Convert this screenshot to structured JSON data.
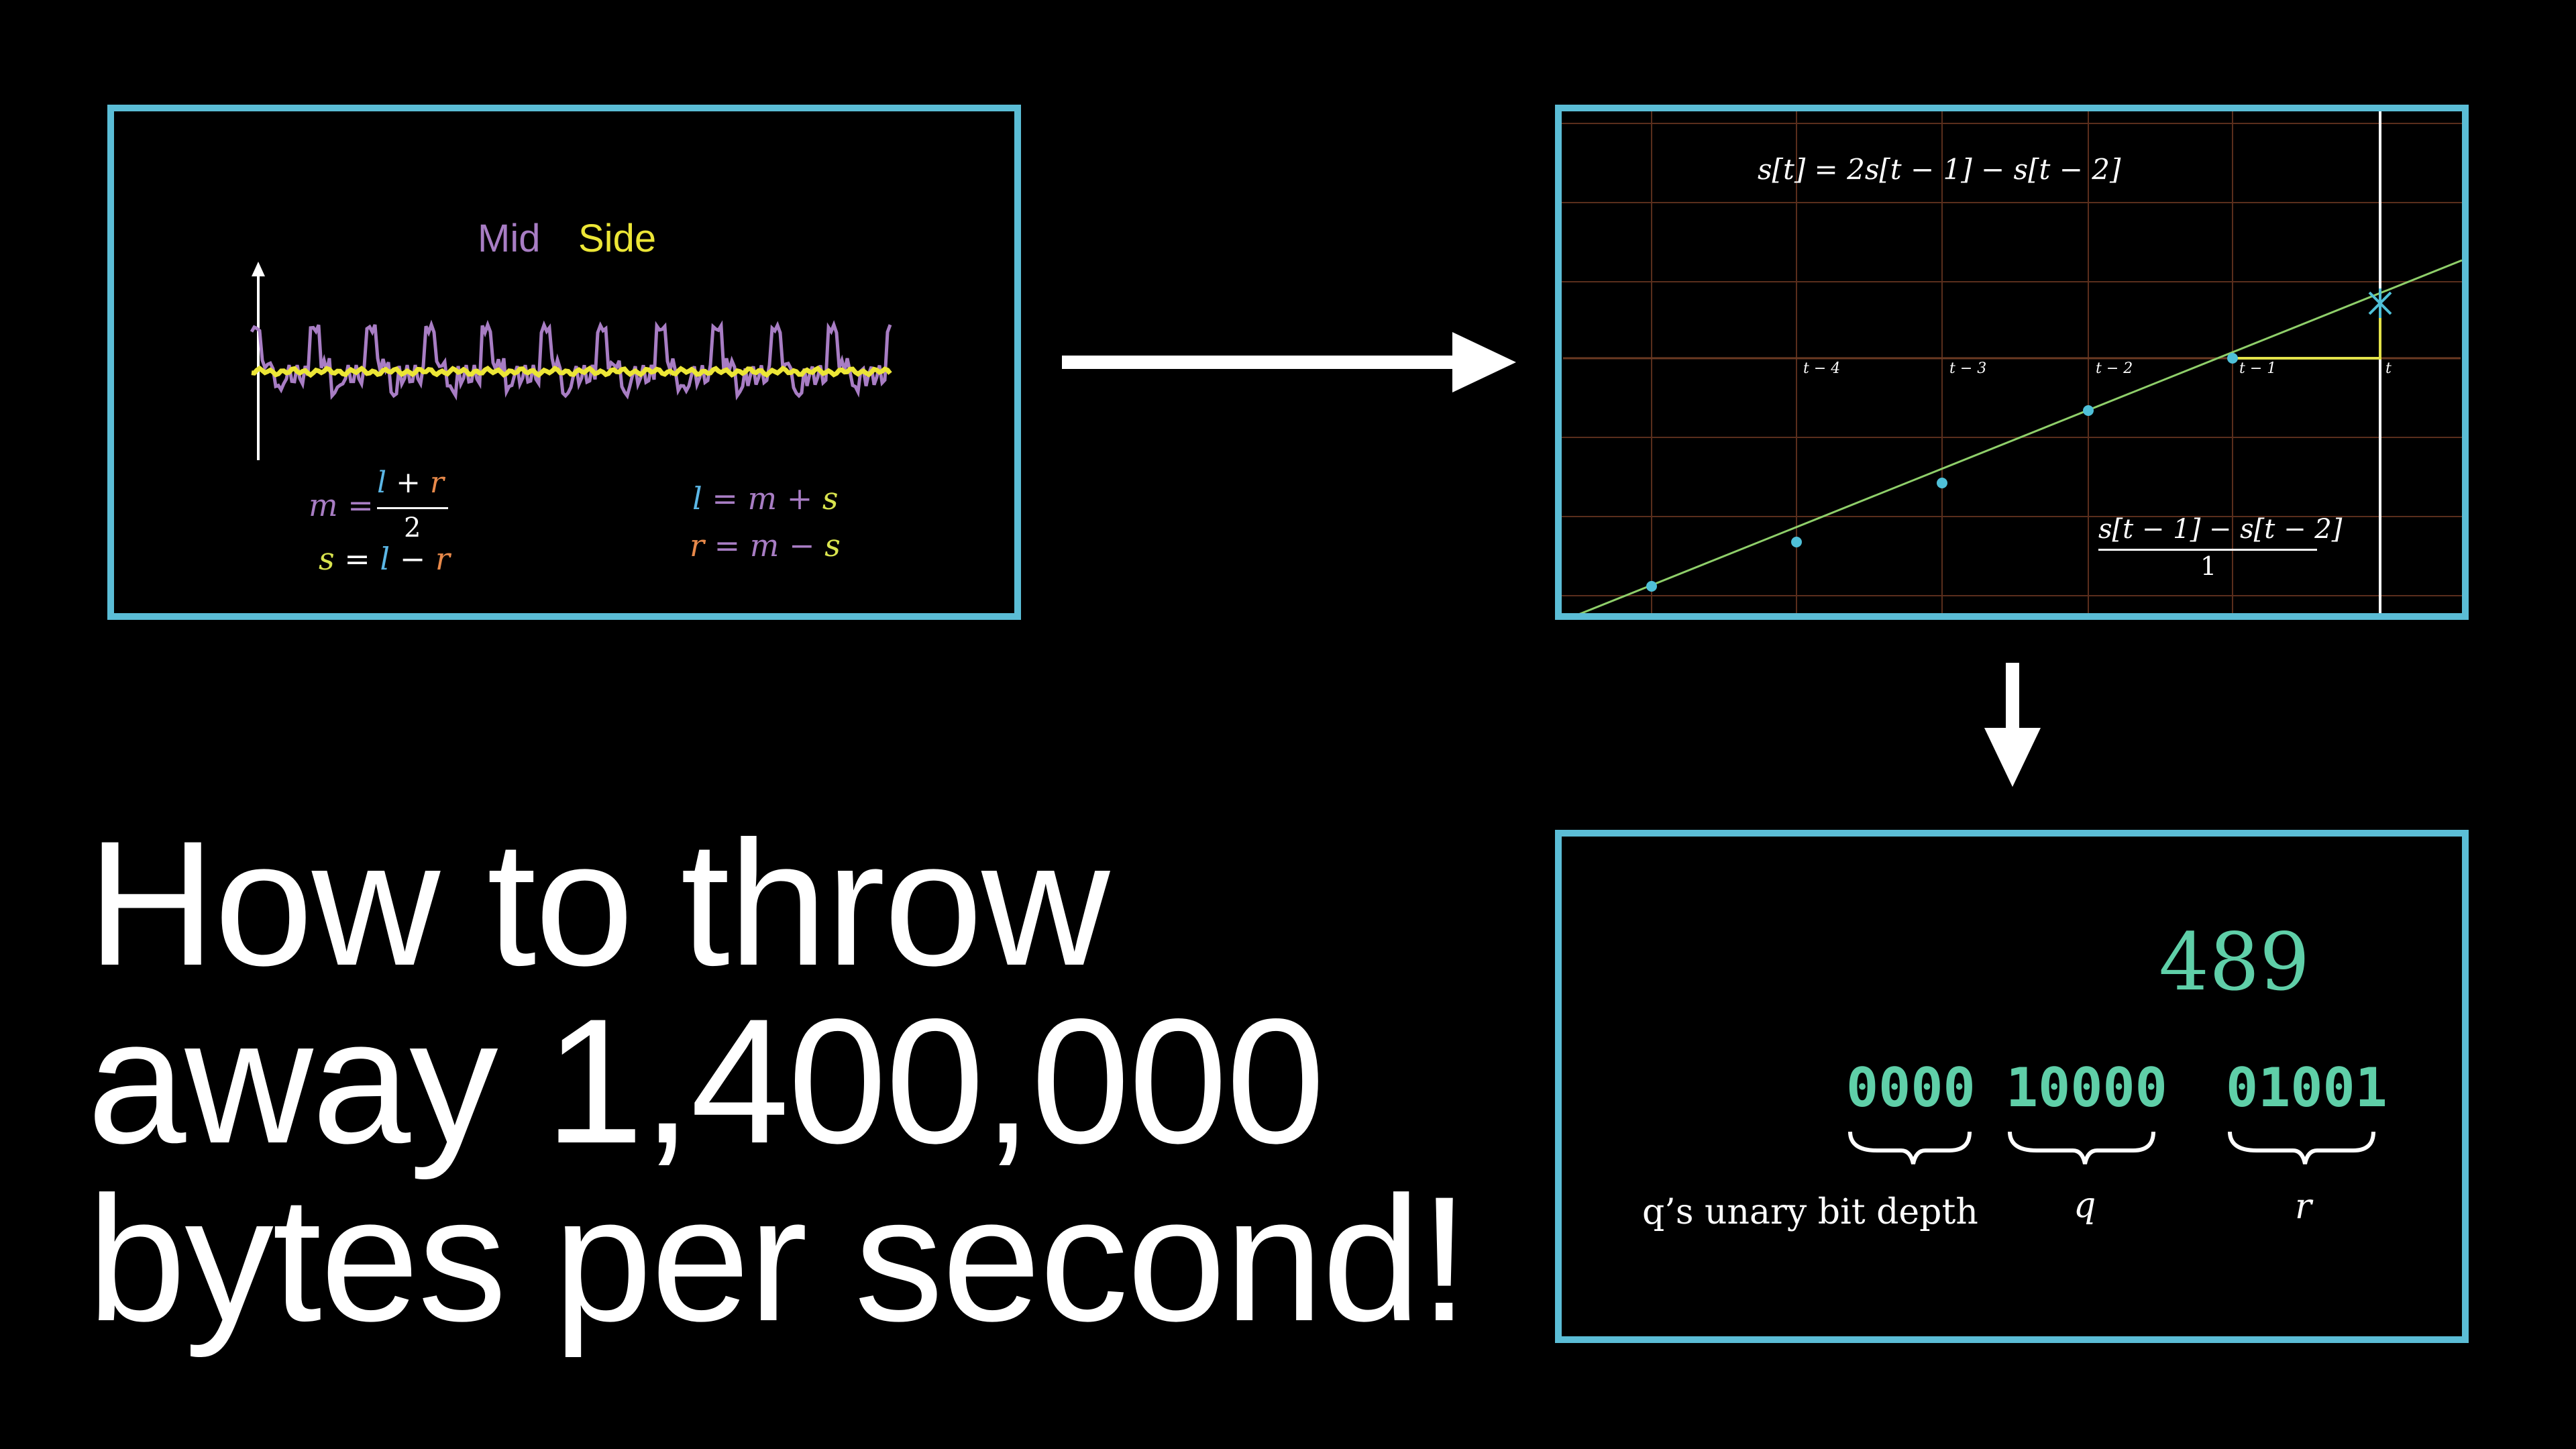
{
  "panel_stereo": {
    "legend_mid": "Mid",
    "legend_side": "Side",
    "eq_m_lhs": "m =",
    "eq_m_num_l": "l",
    "eq_m_num_plus": " + ",
    "eq_m_num_r": "r",
    "eq_m_den": "2",
    "eq_s_lhs": "s",
    "eq_s_rest": " = ",
    "eq_s_l": "l",
    "eq_s_minus": " − ",
    "eq_s_r": "r",
    "eq_l_lhs": "l",
    "eq_l_rest": " = m + ",
    "eq_l_s": "s",
    "eq_r_lhs": "r",
    "eq_r_rest": " = m − ",
    "eq_r_s": "s",
    "colors": {
      "mid": "#a87dc4",
      "side": "#ece636",
      "l": "#5bb7e6",
      "r": "#e8894a",
      "s": "#d9e44e"
    }
  },
  "panel_predict": {
    "formula": "s[t] = 2s[t − 1] − s[t − 2]",
    "slope_num": "s[t − 1] − s[t − 2]",
    "slope_den": "1",
    "tick_labels": [
      "t − 4",
      "t − 3",
      "t − 2",
      "t − 1",
      "t"
    ],
    "colors": {
      "line": "#8fcf6a",
      "point": "#4fc0d8",
      "step": "#e3e34a",
      "grid": "#5a2e1c"
    }
  },
  "panel_rice": {
    "value": "489",
    "bits_unary": "0000",
    "bits_q": "10000",
    "bits_r": "01001",
    "label_unary": "q’s unary bit depth",
    "label_q": "q",
    "label_r": "r"
  },
  "title": {
    "line1": "How to throw",
    "line2": "away 1,400,000",
    "line3": "bytes per second!"
  },
  "border_color": "#5bbdd6"
}
